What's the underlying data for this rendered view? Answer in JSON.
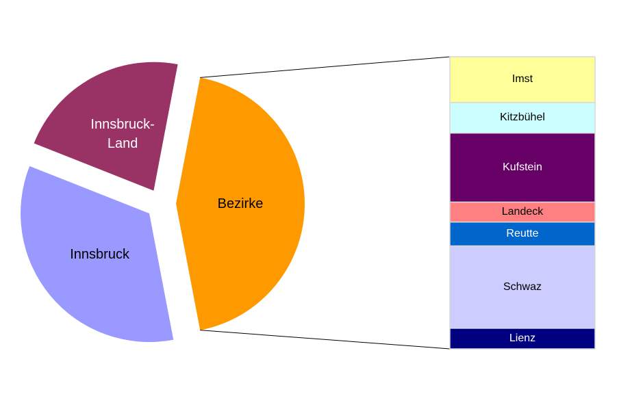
{
  "chart_data": {
    "type": "pie-of-bar",
    "categories": [
      "Innsbruck",
      "Innsbruck-Land",
      "Bezirke"
    ],
    "values": [
      34,
      22,
      44
    ],
    "colors": [
      "#9999ff",
      "#993366",
      "#ff9900"
    ],
    "bar": {
      "categories": [
        "Imst",
        "Kitzbühel",
        "Kufstein",
        "Landeck",
        "Reutte",
        "Schwaz",
        "Lienz"
      ],
      "values": [
        6.9,
        4.6,
        10.4,
        3,
        3.6,
        12.4,
        3.1
      ],
      "colors": [
        "#ffff99",
        "#ccffff",
        "#660066",
        "#ff8080",
        "#0066cc",
        "#ccccff",
        "#000080"
      ]
    }
  }
}
